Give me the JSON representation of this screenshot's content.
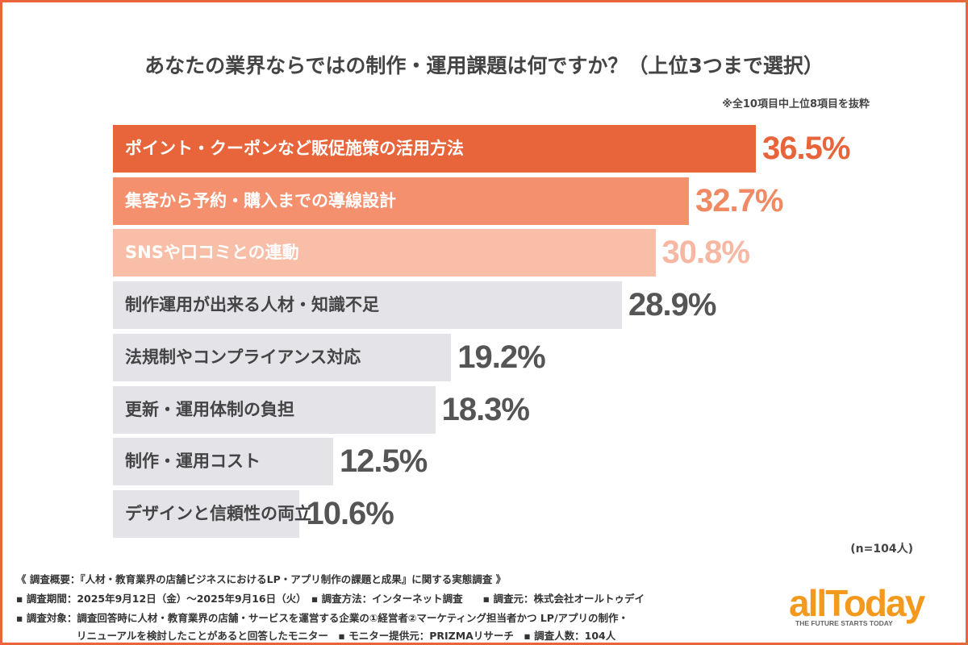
{
  "chart_data": {
    "type": "bar",
    "orientation": "horizontal",
    "title": "あなたの業界ならではの制作・運用課題は何ですか？（上位3つまで選択）",
    "subtitle": "※全10項目中上位8項目を抜粋",
    "categories": [
      "ポイント・クーポンなど販促施策の活用方法",
      "集客から予約・購入までの導線設計",
      "SNSや口コミとの連動",
      "制作運用が出来る人材・知識不足",
      "法規制やコンプライアンス対応",
      "更新・運用体制の負担",
      "制作・運用コスト",
      "デザインと信頼性の両立"
    ],
    "values": [
      36.5,
      32.7,
      30.8,
      28.9,
      19.2,
      18.3,
      12.5,
      10.6
    ],
    "value_labels": [
      "36.5%",
      "32.7%",
      "30.8%",
      "28.9%",
      "19.2%",
      "18.3%",
      "12.5%",
      "10.6%"
    ],
    "unit": "%",
    "bar_colors": [
      "#e8643a",
      "#f5906e",
      "#f9bea8",
      "#e4e3e8",
      "#e4e3e8",
      "#e4e3e8",
      "#e4e3e8",
      "#e4e3e8"
    ],
    "value_colors": [
      "#e8643a",
      "#f08a65",
      "#f6b8a2",
      "#555555",
      "#555555",
      "#555555",
      "#555555",
      "#555555"
    ],
    "label_colors": [
      "#ffffff",
      "#ffffff",
      "#ffffff",
      "#444444",
      "#444444",
      "#444444",
      "#444444",
      "#444444"
    ],
    "sample": "(n=104人)"
  },
  "footer": {
    "lines": [
      "《 調査概要：『人材・教育業界の店舗ビジネスにおけるLP・アプリ制作の課題と成果』に関する実態調査 》",
      "▪ 調査期間：2025年9月12日（金）～2025年9月16日（火）　▪ 調査方法：インターネット調査　　▪ 調査元：株式会社オールトゥデイ",
      "▪ 調査対象：調査回答時に人材・教育業界の店舗・サービスを運営する企業の①経営者②マーケティング担当者かつ LP/アプリの制作・",
      "　　　　　　リニューアルを検討したことがあると回答したモニター　▪ モニター提供元：PRIZMAリサーチ　▪ 調査人数：104人"
    ]
  },
  "logo": {
    "word": "allToday",
    "tagline": "THE FUTURE STARTS TODAY"
  },
  "colors": {
    "accent": "#e8643a",
    "logo": "#f39a1e"
  }
}
